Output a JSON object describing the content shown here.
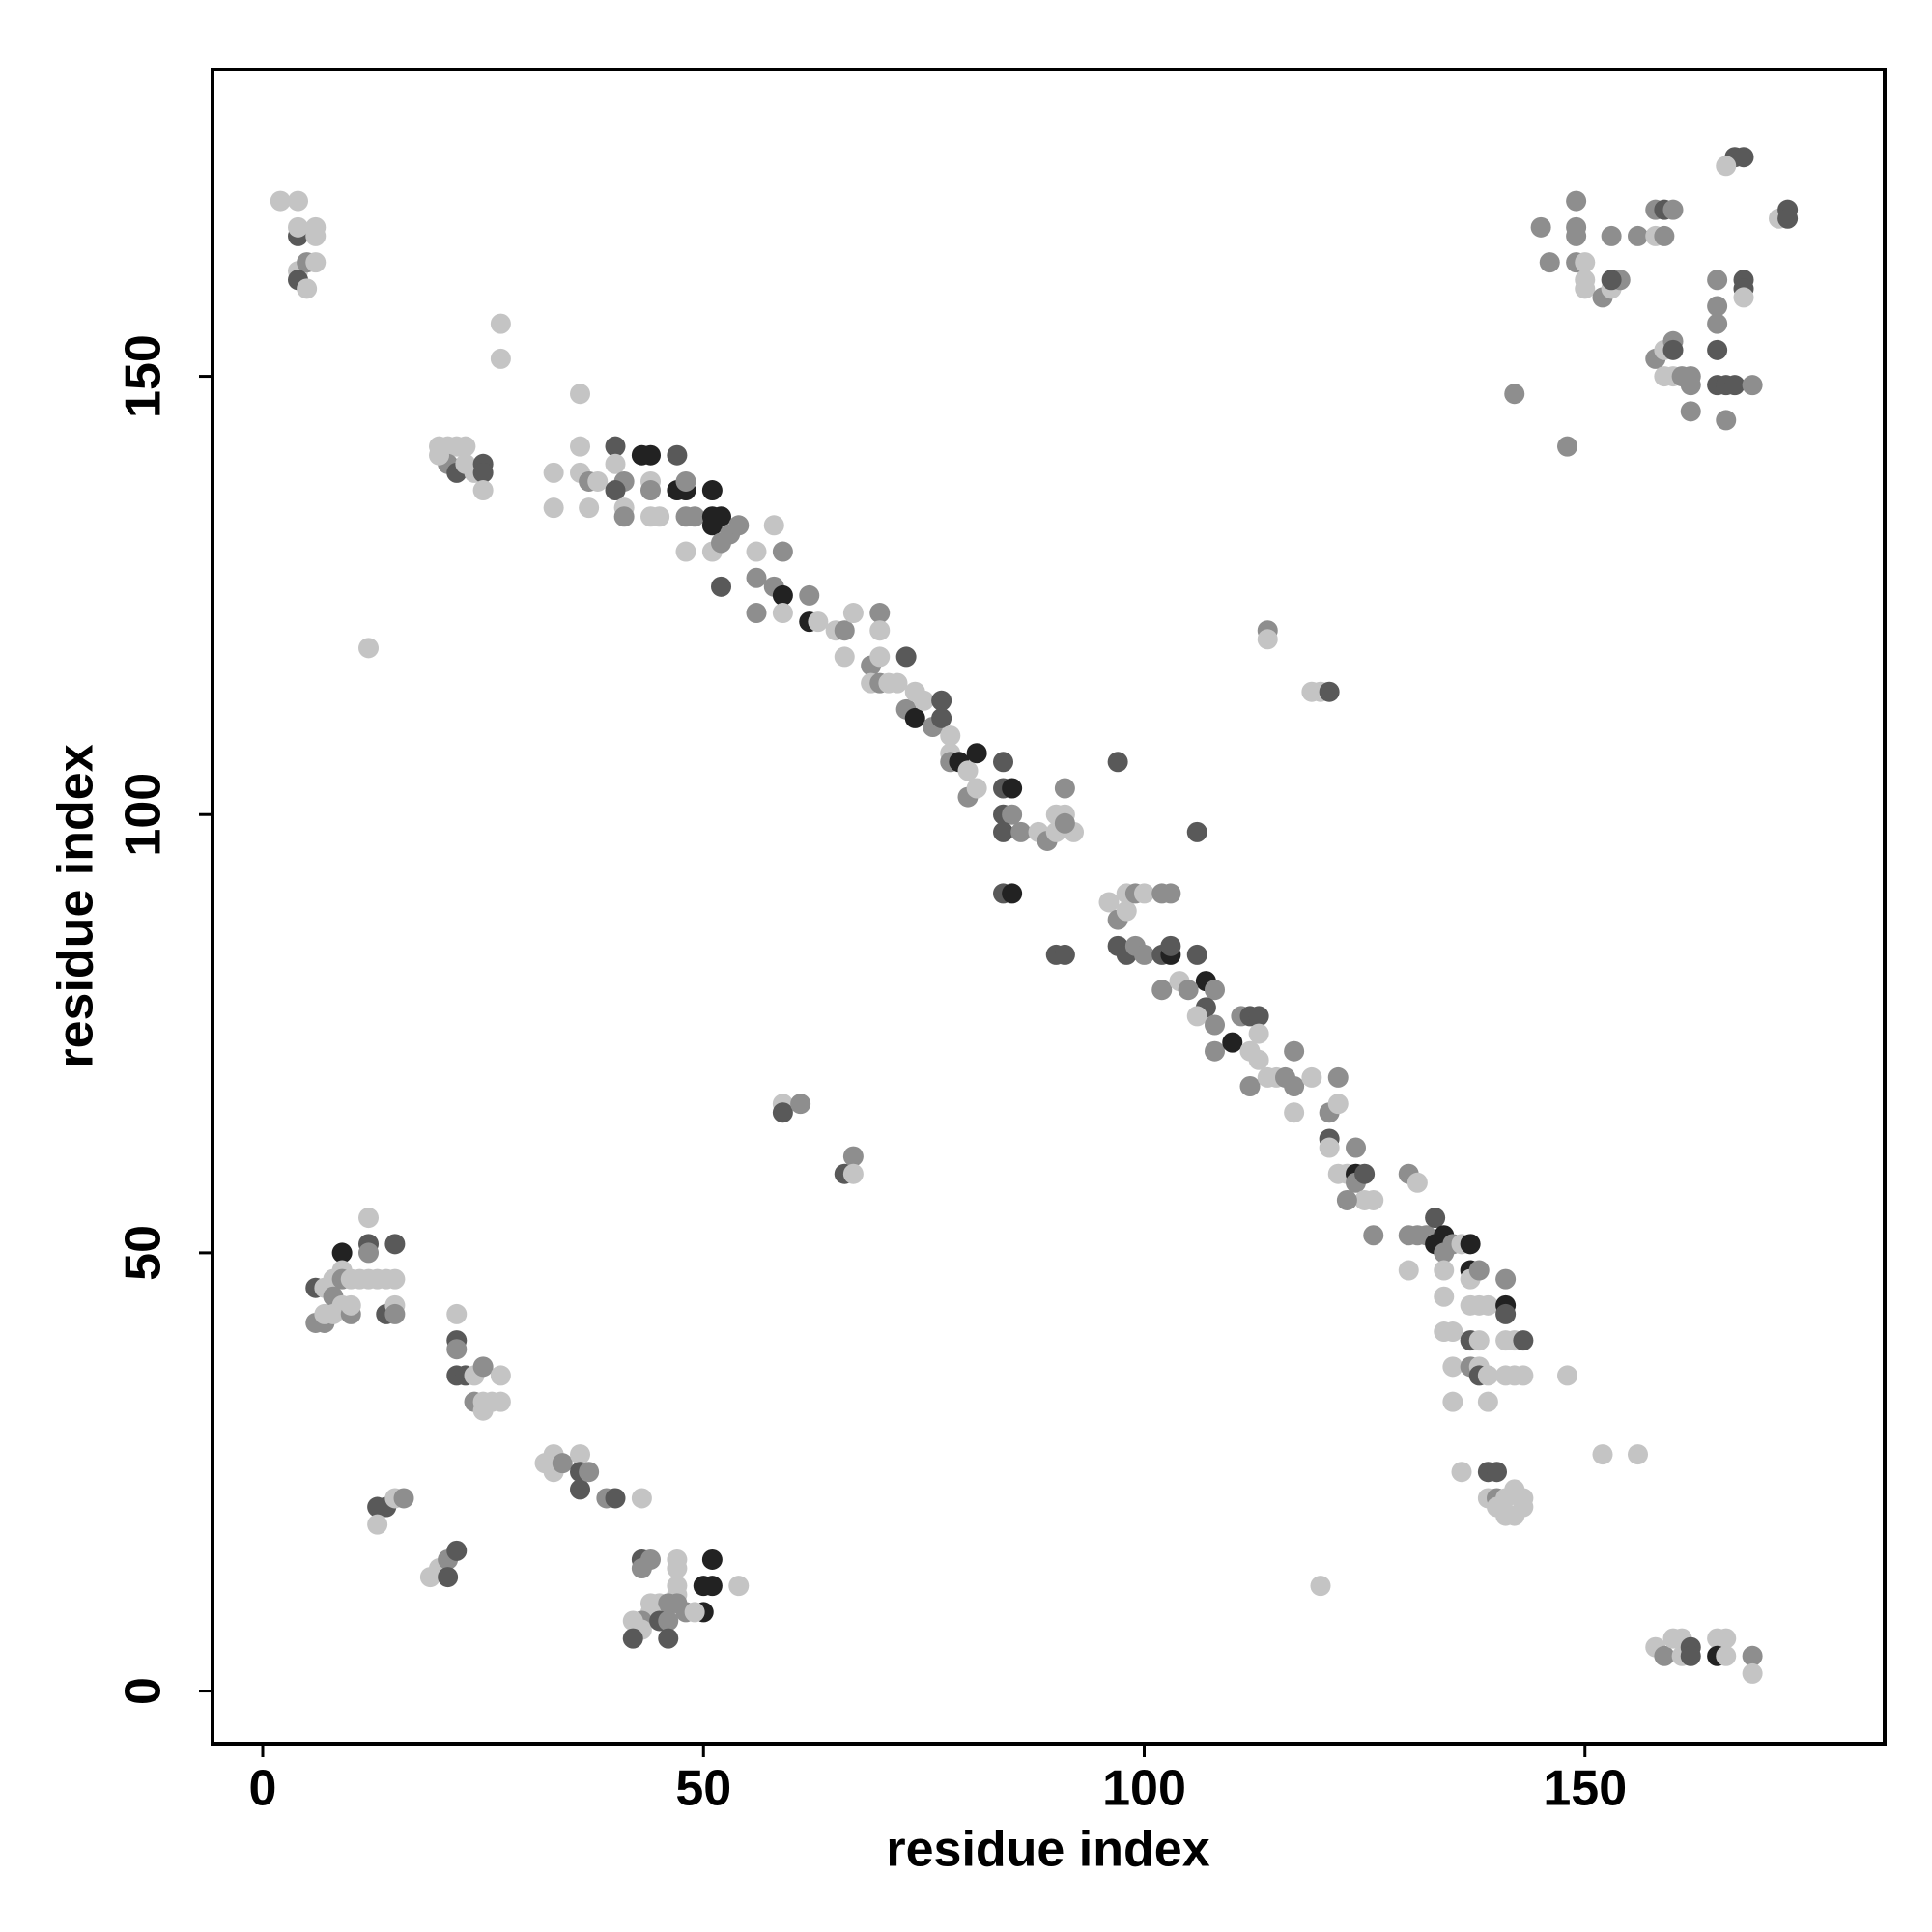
{
  "chart_data": {
    "type": "scatter",
    "x_label": "residue index",
    "y_label": "residue index",
    "xlim": [
      -5.7,
      184
    ],
    "ylim": [
      -6,
      185
    ],
    "xticks": [
      0,
      50,
      100,
      150
    ],
    "yticks": [
      0,
      50,
      100,
      150
    ],
    "x": [
      2,
      4,
      4,
      4,
      6,
      6,
      4,
      5,
      6,
      4,
      5,
      27,
      27,
      20,
      21,
      22,
      23,
      21,
      22,
      23,
      24,
      25,
      25,
      20,
      25,
      12,
      36,
      36,
      36,
      37,
      33,
      33,
      37,
      38,
      40,
      40,
      41,
      40,
      41,
      41,
      43,
      44,
      44,
      44,
      44,
      45,
      47,
      47,
      48,
      48,
      48,
      49,
      48,
      51,
      51,
      52,
      51,
      51,
      52,
      53,
      52,
      54,
      56,
      56,
      58,
      58,
      59,
      59,
      59,
      56,
      62,
      62,
      63,
      65,
      66,
      67,
      66,
      69,
      69,
      70,
      70,
      70,
      70,
      71,
      72,
      73,
      73,
      74,
      74,
      75,
      76,
      77,
      77,
      78,
      78,
      78,
      79,
      80,
      81,
      80,
      81,
      84,
      84,
      85,
      84,
      85,
      84,
      86,
      84,
      85,
      88,
      89,
      90,
      91,
      90,
      91,
      92,
      91,
      90,
      91,
      97,
      96,
      97,
      98,
      98,
      97,
      98,
      99,
      100,
      99,
      100,
      102,
      103,
      102,
      103,
      103,
      102,
      104,
      106,
      106,
      107,
      105,
      108,
      107,
      106,
      108,
      108,
      110,
      111,
      112,
      113,
      113,
      112,
      113,
      112,
      114,
      115,
      116,
      117,
      117,
      117,
      114,
      114,
      119,
      120,
      121,
      119,
      122,
      121,
      122,
      121,
      121,
      122,
      123,
      124,
      124,
      124,
      125,
      125,
      123,
      126,
      126,
      130,
      131,
      130,
      131,
      130,
      132,
      133,
      134,
      133,
      134,
      135,
      136,
      137,
      137,
      137,
      138,
      134,
      134,
      134,
      135,
      135,
      135,
      137,
      137,
      138,
      138,
      139,
      137,
      138,
      138,
      139,
      139,
      141,
      141,
      141,
      141,
      142,
      143,
      141,
      142,
      143,
      148,
      136,
      139,
      140,
      139,
      140,
      141,
      142,
      143,
      142,
      141,
      140,
      143,
      152,
      156,
      120,
      59,
      59,
      61,
      66,
      67,
      67,
      6,
      7,
      8,
      9,
      9,
      8,
      9,
      10,
      11,
      12,
      12,
      12,
      12,
      13,
      15,
      14,
      15,
      6,
      7,
      8,
      9,
      10,
      10,
      7,
      14,
      15,
      15,
      22,
      22,
      22,
      22,
      23,
      24,
      24,
      25,
      25,
      26,
      27,
      27,
      25,
      32,
      33,
      33,
      34,
      36,
      36,
      36,
      37,
      39,
      40,
      43,
      13,
      14,
      15,
      16,
      13,
      19,
      20,
      21,
      21,
      22,
      43,
      44,
      43,
      47,
      47,
      51,
      50,
      51,
      54,
      47,
      47,
      50,
      44,
      45,
      46,
      47,
      48,
      44,
      43,
      42,
      43,
      42,
      45,
      46,
      46,
      49,
      145,
      146,
      149,
      149,
      149,
      149,
      150,
      150,
      150,
      152,
      153,
      153,
      154,
      153,
      156,
      158,
      159,
      160,
      158,
      159,
      167,
      168,
      166,
      165,
      165,
      168,
      168,
      168,
      172,
      173,
      173,
      142,
      148,
      158,
      159,
      160,
      160,
      159,
      160,
      161,
      162,
      162,
      162,
      165,
      165,
      165,
      166,
      167,
      166,
      169,
      158,
      159,
      160,
      161,
      161,
      162,
      162,
      165,
      166,
      165,
      166,
      169,
      169
    ],
    "values": [
      170,
      170,
      166,
      167,
      167,
      166,
      162,
      163,
      163,
      161,
      160,
      156,
      152,
      142,
      142,
      142,
      142,
      140,
      139,
      140,
      139,
      140,
      139,
      141,
      137,
      119,
      148,
      142,
      139,
      138,
      139,
      135,
      135,
      138,
      142,
      140,
      138,
      137,
      135,
      134,
      141,
      141,
      138,
      137,
      134,
      134,
      141,
      137,
      137,
      138,
      134,
      134,
      130,
      137,
      134,
      134,
      133,
      130,
      131,
      132,
      126,
      133,
      130,
      127,
      133,
      126,
      125,
      130,
      123,
      123,
      125,
      122,
      122,
      121,
      121,
      123,
      118,
      117,
      115,
      123,
      121,
      118,
      115,
      115,
      115,
      118,
      112,
      114,
      111,
      113,
      110,
      113,
      111,
      109,
      107,
      106,
      106,
      105,
      107,
      102,
      103,
      106,
      103,
      103,
      100,
      100,
      98,
      98,
      91,
      91,
      98,
      97,
      100,
      100,
      98,
      103,
      98,
      99,
      84,
      84,
      106,
      90,
      88,
      91,
      89,
      85,
      84,
      91,
      91,
      85,
      84,
      91,
      91,
      84,
      84,
      85,
      80,
      81,
      98,
      84,
      81,
      80,
      80,
      78,
      77,
      76,
      73,
      74,
      77,
      77,
      77,
      75,
      73,
      72,
      69,
      70,
      70,
      70,
      73,
      69,
      66,
      121,
      120,
      114,
      114,
      114,
      70,
      70,
      66,
      67,
      63,
      62,
      59,
      59,
      59,
      62,
      58,
      59,
      56,
      56,
      56,
      52,
      59,
      58,
      52,
      52,
      48,
      52,
      54,
      52,
      51,
      50,
      51,
      51,
      51,
      48,
      47,
      48,
      48,
      45,
      41,
      41,
      37,
      33,
      44,
      40,
      40,
      44,
      44,
      37,
      37,
      36,
      36,
      33,
      47,
      44,
      43,
      40,
      40,
      40,
      36,
      36,
      36,
      36,
      25,
      25,
      25,
      22,
      22,
      22,
      23,
      22,
      20,
      20,
      21,
      21,
      27,
      27,
      12,
      67,
      66,
      67,
      59,
      61,
      59,
      46,
      46,
      47,
      50,
      48,
      45,
      47,
      47,
      47,
      51,
      50,
      47,
      54,
      47,
      51,
      47,
      47,
      42,
      42,
      43,
      44,
      43,
      44,
      43,
      43,
      44,
      43,
      43,
      40,
      39,
      36,
      36,
      36,
      33,
      37,
      33,
      33,
      36,
      33,
      32,
      26,
      27,
      25,
      26,
      27,
      25,
      23,
      25,
      22,
      22,
      22,
      21,
      21,
      22,
      22,
      19,
      13,
      14,
      15,
      13,
      16,
      15,
      15,
      14,
      15,
      14,
      15,
      12,
      12,
      12,
      12,
      11,
      9,
      10,
      10,
      10,
      10,
      9,
      9,
      8,
      8,
      7,
      6,
      8,
      8,
      6,
      9,
      167,
      163,
      170,
      167,
      166,
      163,
      163,
      161,
      160,
      159,
      160,
      166,
      161,
      161,
      166,
      169,
      169,
      169,
      166,
      166,
      175,
      175,
      174,
      161,
      158,
      161,
      160,
      159,
      168,
      169,
      168,
      148,
      142,
      152,
      153,
      154,
      153,
      150,
      150,
      150,
      150,
      149,
      146,
      156,
      153,
      149,
      149,
      149,
      145,
      149,
      5,
      4,
      6,
      6,
      4,
      5,
      4,
      6,
      6,
      4,
      4,
      4,
      2
    ],
    "colors": [
      "#c4c4c4",
      "#c4c4c4",
      "#595959",
      "#c4c4c4",
      "#c4c4c4",
      "#c4c4c4",
      "#c4c4c4",
      "#8e8e8e",
      "#c4c4c4",
      "#595959",
      "#c4c4c4",
      "#c4c4c4",
      "#c4c4c4",
      "#c4c4c4",
      "#c4c4c4",
      "#c4c4c4",
      "#c4c4c4",
      "#8e8e8e",
      "#595959",
      "#c4c4c4",
      "#c4c4c4",
      "#595959",
      "#595959",
      "#c4c4c4",
      "#c4c4c4",
      "#c4c4c4",
      "#c4c4c4",
      "#c4c4c4",
      "#c4c4c4",
      "#8e8e8e",
      "#c4c4c4",
      "#c4c4c4",
      "#c4c4c4",
      "#c4c4c4",
      "#595959",
      "#c4c4c4",
      "#8e8e8e",
      "#595959",
      "#c4c4c4",
      "#8e8e8e",
      "#222222",
      "#222222",
      "#c4c4c4",
      "#8e8e8e",
      "#c4c4c4",
      "#c4c4c4",
      "#595959",
      "#222222",
      "#222222",
      "#8e8e8e",
      "#8e8e8e",
      "#8e8e8e",
      "#c4c4c4",
      "#222222",
      "#222222",
      "#222222",
      "#222222",
      "#c4c4c4",
      "#8e8e8e",
      "#8e8e8e",
      "#595959",
      "#8e8e8e",
      "#c4c4c4",
      "#8e8e8e",
      "#c4c4c4",
      "#8e8e8e",
      "#222222",
      "#8e8e8e",
      "#c4c4c4",
      "#8e8e8e",
      "#8e8e8e",
      "#222222",
      "#c4c4c4",
      "#c4c4c4",
      "#8e8e8e",
      "#c4c4c4",
      "#c4c4c4",
      "#8e8e8e",
      "#c4c4c4",
      "#8e8e8e",
      "#c4c4c4",
      "#c4c4c4",
      "#8e8e8e",
      "#c4c4c4",
      "#c4c4c4",
      "#595959",
      "#8e8e8e",
      "#c4c4c4",
      "#222222",
      "#c4c4c4",
      "#8e8e8e",
      "#595959",
      "#595959",
      "#c4c4c4",
      "#c4c4c4",
      "#8e8e8e",
      "#222222",
      "#c4c4c4",
      "#222222",
      "#8e8e8e",
      "#c4c4c4",
      "#595959",
      "#595959",
      "#222222",
      "#595959",
      "#8e8e8e",
      "#595959",
      "#8e8e8e",
      "#595959",
      "#222222",
      "#c4c4c4",
      "#8e8e8e",
      "#c4c4c4",
      "#c4c4c4",
      "#c4c4c4",
      "#8e8e8e",
      "#c4c4c4",
      "#8e8e8e",
      "#595959",
      "#595959",
      "#595959",
      "#c4c4c4",
      "#8e8e8e",
      "#c4c4c4",
      "#c4c4c4",
      "#595959",
      "#595959",
      "#8e8e8e",
      "#c4c4c4",
      "#8e8e8e",
      "#8e8e8e",
      "#8e8e8e",
      "#8e8e8e",
      "#595959",
      "#222222",
      "#595959",
      "#8e8e8e",
      "#c4c4c4",
      "#595959",
      "#595959",
      "#222222",
      "#8e8e8e",
      "#8e8e8e",
      "#595959",
      "#c4c4c4",
      "#8e8e8e",
      "#8e8e8e",
      "#222222",
      "#8e8e8e",
      "#595959",
      "#595959",
      "#c4c4c4",
      "#c4c4c4",
      "#c4c4c4",
      "#8e8e8e",
      "#c4c4c4",
      "#c4c4c4",
      "#8e8e8e",
      "#8e8e8e",
      "#8e8e8e",
      "#c4c4c4",
      "#8e8e8e",
      "#c4c4c4",
      "#c4c4c4",
      "#c4c4c4",
      "#595959",
      "#c4c4c4",
      "#8e8e8e",
      "#8e8e8e",
      "#c4c4c4",
      "#595959",
      "#c4c4c4",
      "#c4c4c4",
      "#c4c4c4",
      "#222222",
      "#8e8e8e",
      "#8e8e8e",
      "#595959",
      "#c4c4c4",
      "#8e8e8e",
      "#c4c4c4",
      "#8e8e8e",
      "#8e8e8e",
      "#c4c4c4",
      "#8e8e8e",
      "#8e8e8e",
      "#c4c4c4",
      "#8e8e8e",
      "#595959",
      "#222222",
      "#222222",
      "#8e8e8e",
      "#8e8e8e",
      "#c4c4c4",
      "#222222",
      "#222222",
      "#c4c4c4",
      "#8e8e8e",
      "#c4c4c4",
      "#c4c4c4",
      "#c4c4c4",
      "#c4c4c4",
      "#c4c4c4",
      "#c4c4c4",
      "#c4c4c4",
      "#595959",
      "#c4c4c4",
      "#c4c4c4",
      "#c4c4c4",
      "#8e8e8e",
      "#c4c4c4",
      "#595959",
      "#c4c4c4",
      "#c4c4c4",
      "#8e8e8e",
      "#222222",
      "#595959",
      "#c4c4c4",
      "#c4c4c4",
      "#595959",
      "#c4c4c4",
      "#c4c4c4",
      "#c4c4c4",
      "#c4c4c4",
      "#c4c4c4",
      "#595959",
      "#595959",
      "#c4c4c4",
      "#8e8e8e",
      "#c4c4c4",
      "#c4c4c4",
      "#c4c4c4",
      "#c4c4c4",
      "#c4c4c4",
      "#c4c4c4",
      "#c4c4c4",
      "#c4c4c4",
      "#c4c4c4",
      "#c4c4c4",
      "#c4c4c4",
      "#595959",
      "#8e8e8e",
      "#595959",
      "#8e8e8e",
      "#c4c4c4",
      "#595959",
      "#c4c4c4",
      "#c4c4c4",
      "#222222",
      "#c4c4c4",
      "#8e8e8e",
      "#8e8e8e",
      "#c4c4c4",
      "#c4c4c4",
      "#595959",
      "#8e8e8e",
      "#c4c4c4",
      "#c4c4c4",
      "#c4c4c4",
      "#595959",
      "#c4c4c4",
      "#c4c4c4",
      "#8e8e8e",
      "#8e8e8e",
      "#c4c4c4",
      "#c4c4c4",
      "#8e8e8e",
      "#c4c4c4",
      "#c4c4c4",
      "#595959",
      "#c4c4c4",
      "#8e8e8e",
      "#c4c4c4",
      "#595959",
      "#8e8e8e",
      "#595959",
      "#595959",
      "#c4c4c4",
      "#8e8e8e",
      "#8e8e8e",
      "#c4c4c4",
      "#c4c4c4",
      "#c4c4c4",
      "#c4c4c4",
      "#c4c4c4",
      "#c4c4c4",
      "#c4c4c4",
      "#c4c4c4",
      "#8e8e8e",
      "#c4c4c4",
      "#595959",
      "#595959",
      "#8e8e8e",
      "#8e8e8e",
      "#595959",
      "#c4c4c4",
      "#595959",
      "#595959",
      "#c4c4c4",
      "#8e8e8e",
      "#c4c4c4",
      "#c4c4c4",
      "#c4c4c4",
      "#8e8e8e",
      "#595959",
      "#595959",
      "#595959",
      "#8e8e8e",
      "#8e8e8e",
      "#c4c4c4",
      "#c4c4c4",
      "#222222",
      "#222222",
      "#222222",
      "#c4c4c4",
      "#c4c4c4",
      "#c4c4c4",
      "#222222",
      "#c4c4c4",
      "#c4c4c4",
      "#8e8e8e",
      "#8e8e8e",
      "#8e8e8e",
      "#c4c4c4",
      "#8e8e8e",
      "#c4c4c4",
      "#c4c4c4",
      "#595959",
      "#595959",
      "#8e8e8e",
      "#595959",
      "#c4c4c4",
      "#8e8e8e",
      "#8e8e8e",
      "#8e8e8e",
      "#8e8e8e",
      "#8e8e8e",
      "#8e8e8e",
      "#c4c4c4",
      "#c4c4c4",
      "#c4c4c4",
      "#8e8e8e",
      "#c4c4c4",
      "#8e8e8e",
      "#8e8e8e",
      "#595959",
      "#8e8e8e",
      "#8e8e8e",
      "#595959",
      "#8e8e8e",
      "#c4c4c4",
      "#8e8e8e",
      "#595959",
      "#595959",
      "#c4c4c4",
      "#8e8e8e",
      "#8e8e8e",
      "#595959",
      "#595959",
      "#c4c4c4",
      "#c4c4c4",
      "#595959",
      "#595959",
      "#8e8e8e",
      "#8e8e8e",
      "#8e8e8e",
      "#c4c4c4",
      "#8e8e8e",
      "#595959",
      "#c4c4c4",
      "#c4c4c4",
      "#8e8e8e",
      "#8e8e8e",
      "#8e8e8e",
      "#8e8e8e",
      "#8e8e8e",
      "#595959",
      "#595959",
      "#595959",
      "#595959",
      "#8e8e8e",
      "#8e8e8e",
      "#c4c4c4",
      "#8e8e8e",
      "#c4c4c4",
      "#c4c4c4",
      "#c4c4c4",
      "#595959",
      "#595959",
      "#c4c4c4",
      "#c4c4c4",
      "#222222",
      "#c4c4c4",
      "#8e8e8e",
      "#c4c4c4"
    ]
  }
}
